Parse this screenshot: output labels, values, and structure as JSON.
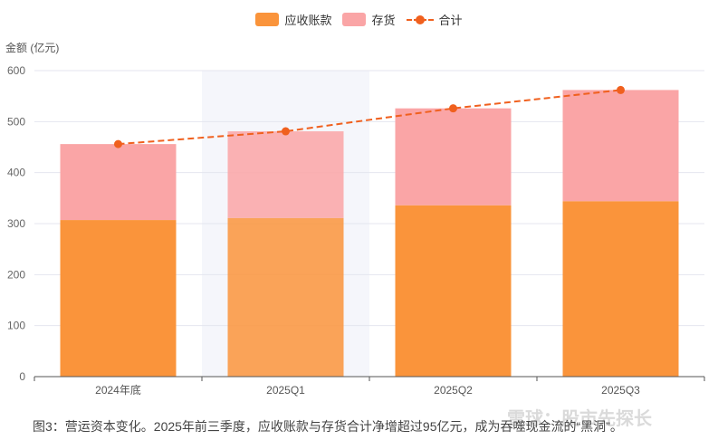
{
  "legend": {
    "receivables": "应收账款",
    "inventory": "存货",
    "total": "合计"
  },
  "y_axis_title": "金额 (亿元)",
  "caption": "图3：营运资本变化。2025年前三季度，应收账款与存货合计净增超过95亿元，成为吞噬现金流的“黑洞”。",
  "watermark": "雪球：股市先探长",
  "colors": {
    "receivables": "#fa943b",
    "inventory": "#faa5a6",
    "total": "#f0601e",
    "highlight_band": "#f5f6fb"
  },
  "chart_data": {
    "type": "bar",
    "stacked": true,
    "categories": [
      "2024年底",
      "2025Q1",
      "2025Q2",
      "2025Q3"
    ],
    "series": [
      {
        "name": "应收账款",
        "type": "bar",
        "values": [
          307,
          311,
          336,
          344
        ]
      },
      {
        "name": "存货",
        "type": "bar",
        "values": [
          149,
          170,
          190,
          218
        ]
      },
      {
        "name": "合计",
        "type": "line",
        "values": [
          456,
          481,
          526,
          562
        ]
      }
    ],
    "ylim": [
      0,
      600
    ],
    "yticks": [
      0,
      100,
      200,
      300,
      400,
      500,
      600
    ],
    "ylabel": "金额 (亿元)",
    "highlighted_category": "2025Q1",
    "legend_position": "top-center",
    "grid": true
  }
}
